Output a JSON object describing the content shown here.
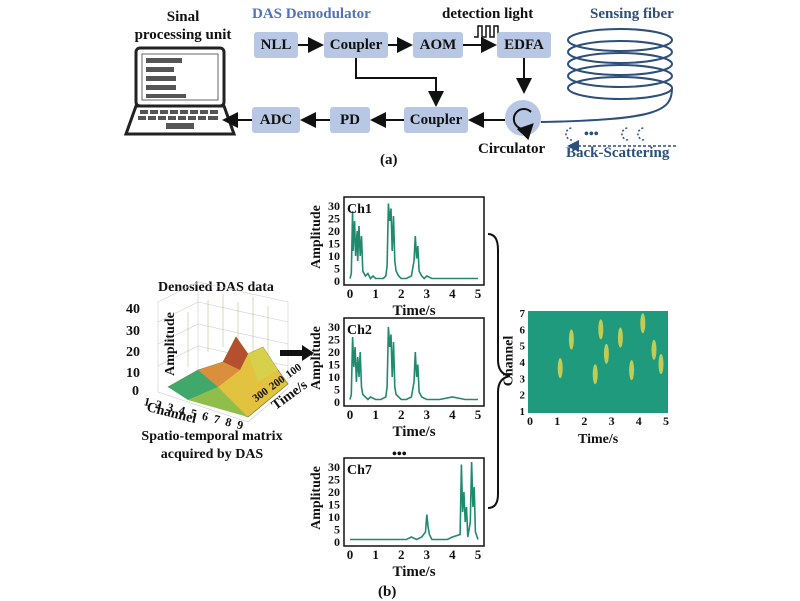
{
  "colors": {
    "block": "#b8c8e4",
    "demod_title": "#4f74b5",
    "fiber": "#2c4f7c",
    "trace": "#1f8a6e",
    "heat_base": "#1f9a7d",
    "heat_hot": "#e8d84a"
  },
  "part_a": {
    "label": "(a)",
    "signal_unit": "Sinal\nprocessing unit",
    "demod_title": "DAS Demodulator",
    "detection_light": "detection light",
    "sensing_fiber": "Sensing fiber",
    "circulator": "Circulator",
    "back_scattering": "Back-Scattering",
    "blocks": {
      "nll": "NLL",
      "coupler1": "Coupler",
      "aom": "AOM",
      "edfa": "EDFA",
      "coupler2": "Coupler",
      "pd": "PD",
      "adc": "ADC"
    }
  },
  "part_b": {
    "label": "(b)",
    "cube_title": "Denosied DAS data",
    "cube_caption": "Spatio-temporal matrix\nacquired by DAS",
    "cube_ylabel": "Amplitude",
    "cube_xlabel": "Channel",
    "cube_tlabel": "Time/s",
    "cube_zticks": [
      "40",
      "30",
      "20",
      "10",
      "0"
    ],
    "cube_xticks": [
      "1",
      "2",
      "3",
      "4",
      "5",
      "6",
      "7",
      "8",
      "9"
    ],
    "cube_tticks": [
      "300",
      "200",
      "100"
    ],
    "dots": "•••",
    "heatmap_ylabel": "Channel",
    "heatmap_xlabel": "Time/s",
    "heatmap_yticks": [
      "7",
      "6",
      "5",
      "4",
      "3",
      "2",
      "1"
    ],
    "heatmap_xticks": [
      "0",
      "1",
      "2",
      "3",
      "4",
      "5"
    ]
  },
  "chart_data": [
    {
      "type": "line",
      "title": "Ch1",
      "xlabel": "Time/s",
      "ylabel": "Amplitude",
      "xlim": [
        0,
        5
      ],
      "ylim": [
        0,
        32
      ],
      "xticks": [
        "0",
        "1",
        "2",
        "3",
        "4",
        "5"
      ],
      "yticks": [
        "30",
        "25",
        "20",
        "15",
        "10",
        "5",
        "0"
      ],
      "series": [
        {
          "x": [
            0,
            0.05,
            0.1,
            0.12,
            0.18,
            0.22,
            0.28,
            0.3,
            0.35,
            0.4,
            0.45,
            0.5,
            0.6,
            0.7,
            0.8,
            0.9,
            1.0,
            1.1,
            1.2,
            1.3,
            1.4,
            1.45,
            1.5,
            1.55,
            1.6,
            1.65,
            1.7,
            1.75,
            1.8,
            1.9,
            2.0,
            2.2,
            2.4,
            2.5,
            2.55,
            2.6,
            2.65,
            2.7,
            2.8,
            2.9,
            3.0,
            3.2,
            3.5,
            4.0,
            4.5,
            5.0
          ],
          "y": [
            1,
            3,
            28,
            12,
            24,
            10,
            20,
            8,
            22,
            10,
            18,
            4,
            2,
            3,
            1,
            2,
            1,
            1,
            1,
            1,
            2,
            6,
            31,
            24,
            29,
            12,
            26,
            8,
            4,
            2,
            1,
            1,
            2,
            8,
            18,
            9,
            14,
            4,
            2,
            1,
            2,
            1,
            1,
            1,
            1,
            1
          ]
        }
      ]
    },
    {
      "type": "line",
      "title": "Ch2",
      "xlabel": "Time/s",
      "ylabel": "Amplitude",
      "xlim": [
        0,
        5
      ],
      "ylim": [
        0,
        32
      ],
      "xticks": [
        "0",
        "1",
        "2",
        "3",
        "4",
        "5"
      ],
      "yticks": [
        "30",
        "25",
        "20",
        "15",
        "10",
        "5",
        "0"
      ],
      "series": [
        {
          "x": [
            0,
            0.05,
            0.1,
            0.15,
            0.2,
            0.25,
            0.3,
            0.35,
            0.4,
            0.45,
            0.5,
            0.6,
            0.7,
            0.8,
            1.0,
            1.2,
            1.4,
            1.45,
            1.5,
            1.55,
            1.6,
            1.65,
            1.7,
            1.75,
            1.8,
            2.0,
            2.2,
            2.4,
            2.5,
            2.55,
            2.6,
            2.65,
            2.7,
            2.8,
            3.0,
            3.5,
            4.0,
            4.5,
            5.0
          ],
          "y": [
            1,
            3,
            26,
            14,
            22,
            8,
            18,
            10,
            20,
            6,
            3,
            2,
            1,
            2,
            1,
            1,
            2,
            6,
            30,
            22,
            27,
            10,
            24,
            6,
            3,
            1,
            1,
            2,
            8,
            20,
            10,
            15,
            4,
            2,
            1,
            1,
            2,
            1,
            1
          ]
        }
      ]
    },
    {
      "type": "line",
      "title": "Ch7",
      "xlabel": "Time/s",
      "ylabel": "Amplitude",
      "xlim": [
        0,
        5
      ],
      "ylim": [
        0,
        32
      ],
      "xticks": [
        "0",
        "1",
        "2",
        "3",
        "4",
        "5"
      ],
      "yticks": [
        "30",
        "25",
        "20",
        "15",
        "10",
        "5",
        "0"
      ],
      "series": [
        {
          "x": [
            0,
            0.5,
            1.0,
            1.5,
            2.0,
            2.2,
            2.4,
            2.6,
            2.8,
            2.95,
            3.0,
            3.05,
            3.1,
            3.2,
            3.4,
            3.6,
            3.8,
            4.0,
            4.3,
            4.35,
            4.4,
            4.45,
            4.5,
            4.55,
            4.6,
            4.7,
            4.75,
            4.8,
            4.85,
            4.9,
            5.0
          ],
          "y": [
            1,
            1,
            1,
            1,
            1,
            1,
            2,
            1,
            2,
            4,
            11,
            6,
            3,
            1,
            1,
            1,
            1,
            2,
            3,
            31,
            12,
            20,
            8,
            14,
            2,
            8,
            32,
            14,
            22,
            4,
            1
          ]
        }
      ]
    }
  ]
}
